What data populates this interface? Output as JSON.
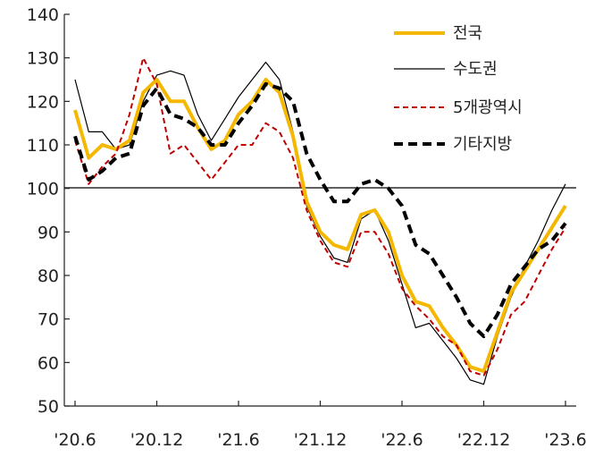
{
  "chart_data": {
    "type": "line",
    "title": "",
    "xlabel": "",
    "ylabel": "",
    "ylim": [
      50,
      140
    ],
    "yticks": [
      50,
      60,
      70,
      80,
      90,
      100,
      110,
      120,
      130,
      140
    ],
    "ytick_labels": [
      "50",
      "60",
      "70",
      "80",
      "90",
      "100",
      "110",
      "120",
      "130",
      "140"
    ],
    "xtick_labels": [
      "'20.6",
      "'20.12",
      "'21.6",
      "'21.12",
      "'22.6",
      "'22.12",
      "'23.6"
    ],
    "xtick_index": [
      0,
      6,
      12,
      18,
      24,
      30,
      36
    ],
    "x": [
      "'20.6",
      "'20.7",
      "'20.8",
      "'20.9",
      "'20.10",
      "'20.11",
      "'20.12",
      "'21.1",
      "'21.2",
      "'21.3",
      "'21.4",
      "'21.5",
      "'21.6",
      "'21.7",
      "'21.8",
      "'21.9",
      "'21.10",
      "'21.11",
      "'21.12",
      "'22.1",
      "'22.2",
      "'22.3",
      "'22.4",
      "'22.5",
      "'22.6",
      "'22.7",
      "'22.8",
      "'22.9",
      "'22.10",
      "'22.11",
      "'22.12",
      "'23.1",
      "'23.2",
      "'23.3",
      "'23.4",
      "'23.5",
      "'23.6"
    ],
    "reference_line": 100,
    "grid": false,
    "legend_position": "top-right",
    "series": [
      {
        "name": "전국",
        "color": "#F5B800",
        "style": "solid-thick",
        "values": [
          118,
          107,
          110,
          109,
          111,
          122,
          125,
          120,
          120,
          114,
          109,
          111,
          117,
          120,
          125,
          122,
          112,
          97,
          90,
          87,
          86,
          94,
          95,
          90,
          80,
          74,
          73,
          68,
          64,
          59,
          58,
          67,
          76,
          81,
          86,
          91,
          96
        ]
      },
      {
        "name": "수도권",
        "color": "#000000",
        "style": "solid-thin",
        "values": [
          125,
          113,
          113,
          109,
          110,
          120,
          126,
          127,
          126,
          117,
          111,
          116,
          121,
          125,
          129,
          125,
          113,
          96,
          89,
          84,
          83,
          93,
          95,
          88,
          78,
          68,
          69,
          65,
          61,
          56,
          55,
          66,
          75,
          82,
          88,
          95,
          101
        ]
      },
      {
        "name": "5개광역시",
        "color": "#C00000",
        "style": "dashed-thin",
        "values": [
          111,
          101,
          105,
          108,
          117,
          130,
          124,
          108,
          110,
          106,
          102,
          106,
          110,
          110,
          115,
          113,
          107,
          95,
          88,
          83,
          82,
          90,
          90,
          85,
          77,
          73,
          70,
          66,
          64,
          58,
          57,
          63,
          71,
          74,
          80,
          86,
          91
        ]
      },
      {
        "name": "기타지방",
        "color": "#000000",
        "style": "dashed-thick",
        "values": [
          112,
          102,
          104,
          107,
          108,
          119,
          123,
          117,
          116,
          114,
          110,
          110,
          115,
          119,
          124,
          123,
          120,
          108,
          102,
          97,
          97,
          101,
          102,
          100,
          96,
          87,
          85,
          80,
          75,
          69,
          66,
          71,
          78,
          82,
          86,
          88,
          92
        ]
      }
    ]
  }
}
